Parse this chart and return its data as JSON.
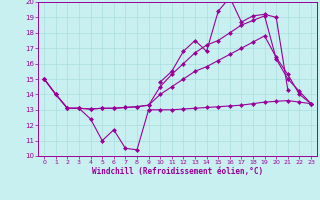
{
  "xlabel": "Windchill (Refroidissement éolien,°C)",
  "bg_color": "#c8f0f0",
  "line_color": "#990099",
  "grid_color": "#aadddd",
  "xlim": [
    0,
    23
  ],
  "ylim": [
    10,
    20
  ],
  "xticks": [
    0,
    1,
    2,
    3,
    4,
    5,
    6,
    7,
    8,
    9,
    10,
    11,
    12,
    13,
    14,
    15,
    16,
    17,
    18,
    19,
    20,
    21,
    22,
    23
  ],
  "yticks": [
    10,
    11,
    12,
    13,
    14,
    15,
    16,
    17,
    18,
    19,
    20
  ],
  "line1_x": [
    0,
    1,
    2,
    3,
    4,
    5,
    6,
    7,
    8,
    9
  ],
  "line1_y": [
    15.0,
    14.0,
    13.1,
    13.1,
    12.4,
    11.0,
    11.7,
    10.5,
    10.4,
    13.0
  ],
  "line2_x": [
    9,
    10,
    11,
    12,
    13,
    14,
    15,
    16,
    17,
    18,
    19,
    20,
    21,
    22,
    23
  ],
  "line2_y": [
    13.0,
    13.0,
    13.0,
    13.05,
    13.1,
    13.15,
    13.2,
    13.25,
    13.3,
    13.4,
    13.5,
    13.55,
    13.6,
    13.5,
    13.4
  ],
  "line3_x": [
    0,
    1,
    2,
    3,
    4,
    5,
    6,
    7,
    8,
    9,
    10,
    11,
    12,
    13,
    14,
    15,
    16,
    17,
    18,
    19,
    20,
    21,
    22,
    23
  ],
  "line3_y": [
    15.0,
    14.0,
    13.1,
    13.1,
    13.05,
    13.1,
    13.1,
    13.15,
    13.2,
    13.3,
    14.0,
    14.5,
    15.0,
    15.5,
    15.8,
    16.2,
    16.6,
    17.0,
    17.4,
    17.8,
    16.4,
    15.3,
    14.0,
    13.4
  ],
  "line4_x": [
    0,
    1,
    2,
    3,
    4,
    5,
    6,
    7,
    8,
    9,
    10,
    11,
    12,
    13,
    14,
    15,
    16,
    17,
    18,
    19,
    20,
    21,
    22,
    23
  ],
  "line4_y": [
    15.0,
    14.0,
    13.1,
    13.1,
    13.05,
    13.1,
    13.1,
    13.15,
    13.2,
    13.3,
    14.5,
    15.3,
    16.0,
    16.7,
    17.2,
    17.5,
    18.0,
    18.5,
    18.8,
    19.1,
    16.3,
    15.0,
    14.2,
    13.4
  ],
  "line5_x": [
    10,
    11,
    12,
    13,
    14,
    15,
    16,
    17,
    18,
    19,
    20,
    21
  ],
  "line5_y": [
    14.8,
    15.5,
    16.8,
    17.5,
    16.8,
    19.4,
    20.3,
    18.7,
    19.1,
    19.2,
    19.0,
    14.3
  ]
}
